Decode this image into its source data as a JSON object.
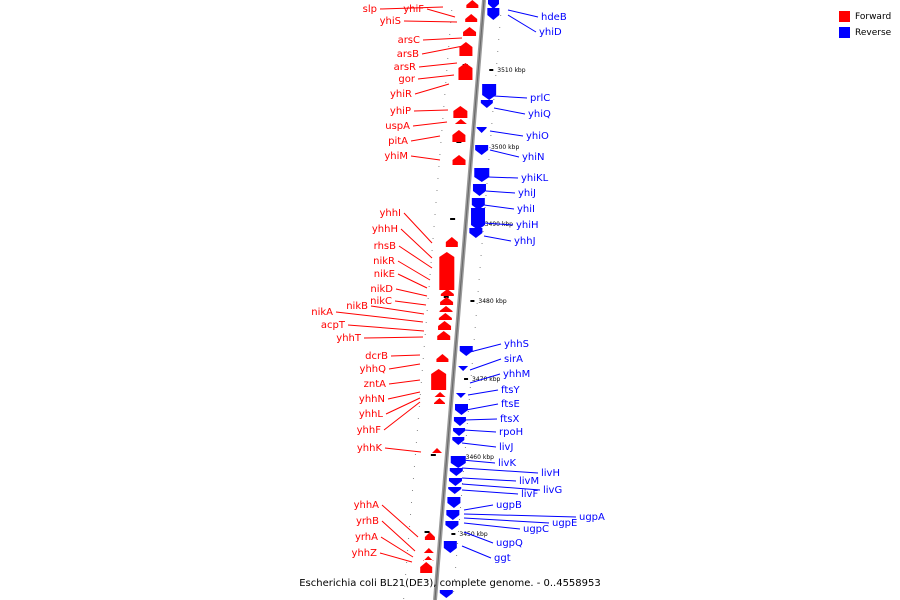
{
  "legend": {
    "forward_label": "Forward",
    "reverse_label": "Reverse",
    "forward_color": "#ff0000",
    "reverse_color": "#0000ff"
  },
  "caption": "Escherichia coli BL21(DE3), complete genome. - 0..4558953",
  "ticks": [
    {
      "label": "3510 kbp"
    },
    {
      "label": "3500 kbp"
    },
    {
      "label": "3490 kbp"
    },
    {
      "label": "3480 kbp"
    },
    {
      "label": "3470 kbp"
    },
    {
      "label": "3460 kbp"
    },
    {
      "label": "3450 kbp"
    }
  ],
  "forward_genes": [
    "slp",
    "yhiF",
    "yhiS",
    "arsC",
    "arsB",
    "arsR",
    "gor",
    "yhiR",
    "yhiP",
    "uspA",
    "pitA",
    "yhiM",
    "yhhI",
    "yhhH",
    "rhsB",
    "nikR",
    "nikE",
    "nikD",
    "nikC",
    "nikB",
    "nikA",
    "acpT",
    "yhhT",
    "dcrB",
    "yhhQ",
    "zntA",
    "yhhN",
    "yhhL",
    "yhhF",
    "yhhK",
    "yhhA",
    "yrhB",
    "yrhA",
    "yhhZ"
  ],
  "reverse_genes": [
    "hdeB",
    "yhiD",
    "prlC",
    "yhiQ",
    "yhiO",
    "yhiN",
    "yhiKL",
    "yhiJ",
    "yhiI",
    "yhiH",
    "yhhJ",
    "yhhS",
    "sirA",
    "yhhM",
    "ftsY",
    "ftsE",
    "ftsX",
    "rpoH",
    "livJ",
    "livK",
    "livH",
    "livM",
    "livG",
    "livF",
    "ugpB",
    "ugpA",
    "ugpE",
    "ugpC",
    "ugpQ",
    "ggt"
  ]
}
